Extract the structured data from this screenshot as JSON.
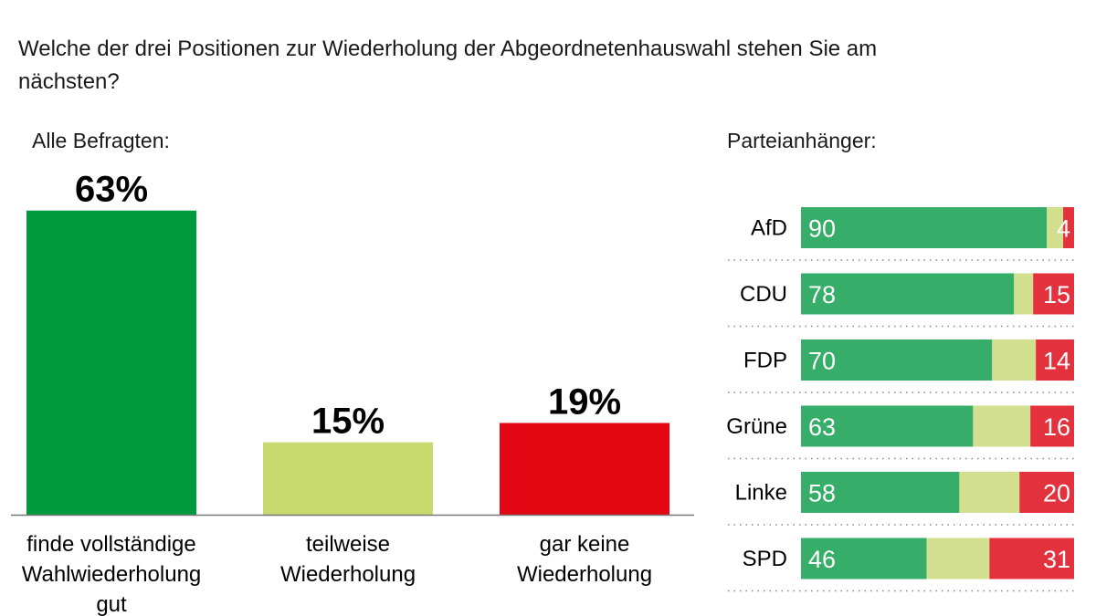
{
  "title": "Welche der drei Positionen zur Wiederholung der Abgeordnetenhauswahl stehen Sie am nächsten?",
  "chart_data": [
    {
      "type": "bar",
      "subtitle": "Alle Befragten:",
      "categories": [
        [
          "finde vollständige",
          "Wahlwiederholung",
          "gut"
        ],
        [
          "teilweise",
          "Wiederholung"
        ],
        [
          "gar keine",
          "Wiederholung"
        ]
      ],
      "values": [
        63,
        15,
        19
      ],
      "value_labels": [
        "63%",
        "15%",
        "19%"
      ],
      "colors": [
        "#009a3e",
        "#c8d96f",
        "#e20613"
      ]
    },
    {
      "type": "bar",
      "orientation": "horizontal-stacked",
      "subtitle": "Parteianhänger:",
      "categories": [
        "AfD",
        "CDU",
        "FDP",
        "Grüne",
        "Linke",
        "SPD"
      ],
      "series": [
        {
          "values": [
            90,
            78,
            70,
            63,
            58,
            46
          ],
          "color": "#36ad68"
        },
        {
          "values": [
            6,
            7,
            16,
            21,
            22,
            23
          ],
          "color": "#d1df8f"
        },
        {
          "values": [
            4,
            15,
            14,
            16,
            20,
            31
          ],
          "color": "#e3323d"
        }
      ],
      "xlim": [
        0,
        100
      ]
    }
  ]
}
